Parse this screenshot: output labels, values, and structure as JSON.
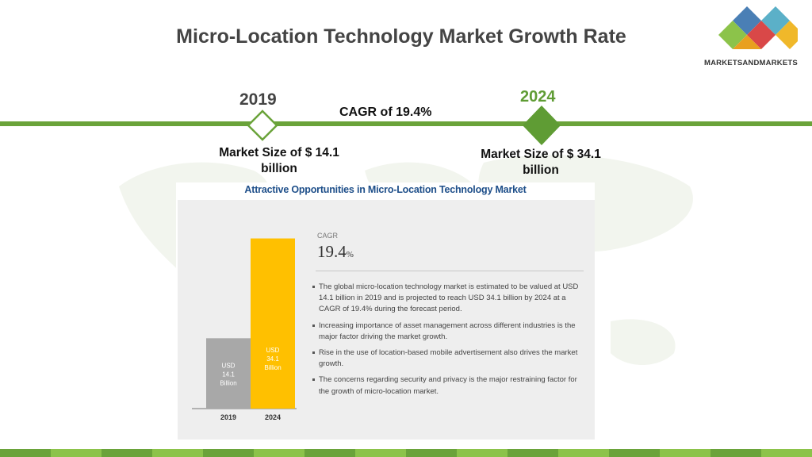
{
  "title": "Micro-Location Technology Market Growth Rate",
  "logo": {
    "text": "MARKETSANDMARKETS",
    "colors": [
      "#4a7fb5",
      "#5bb0c8",
      "#d94848",
      "#8cc34a",
      "#f0b82a"
    ]
  },
  "timeline": {
    "start_year": "2019",
    "end_year": "2024",
    "cagr_label": "CAGR of 19.4%",
    "start_market_size": "Market Size of $ 14.1 billion",
    "end_market_size": "Market Size of $ 34.1 billion",
    "line_color": "#6aa33a"
  },
  "panel": {
    "title": "Attractive Opportunities in Micro-Location Technology Market",
    "cagr_label": "CAGR",
    "cagr_value": "19.4",
    "cagr_unit": "%",
    "bullets": [
      "The global micro-location technology market is estimated to be valued at USD 14.1 billion in 2019 and is projected to reach USD 34.1 billion by 2024 at a CAGR of 19.4% during the forecast period.",
      "Increasing importance of asset management across different industries is the major factor driving the market growth.",
      "Rise in the use of location-based mobile advertisement also drives the market growth.",
      "The concerns regarding security and privacy is the major restraining factor for the growth of micro-location market."
    ]
  },
  "chart_data": {
    "type": "bar",
    "categories": [
      "2019",
      "2024"
    ],
    "values": [
      14.1,
      34.1
    ],
    "bar_labels": [
      [
        "USD",
        "14.1",
        "Billion"
      ],
      [
        "USD",
        "34.1",
        "Billion"
      ]
    ],
    "colors": [
      "#a8a8a8",
      "#ffc000"
    ],
    "ylim": [
      0,
      38
    ]
  },
  "footer_colors": [
    "#6aa33a",
    "#8cc34a"
  ]
}
